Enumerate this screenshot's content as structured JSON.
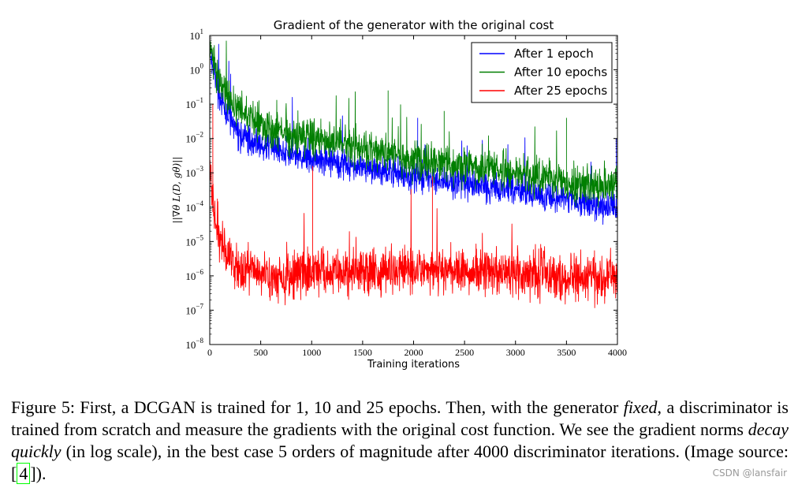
{
  "chart_data": {
    "type": "line",
    "title": "Gradient of the generator with the original cost",
    "xlabel": "Training iterations",
    "ylabel": "||∇θ L(D, gθ)||",
    "xlim": [
      0,
      4000
    ],
    "ylim_log10": [
      -8,
      1
    ],
    "yscale": "log",
    "x_ticks": [
      "0",
      "500",
      "1000",
      "1500",
      "2000",
      "2500",
      "3000",
      "3500",
      "4000"
    ],
    "y_ticks": [
      {
        "base": "10",
        "exp": "1"
      },
      {
        "base": "10",
        "exp": "0"
      },
      {
        "base": "10",
        "exp": "−1"
      },
      {
        "base": "10",
        "exp": "−2"
      },
      {
        "base": "10",
        "exp": "−3"
      },
      {
        "base": "10",
        "exp": "−4"
      },
      {
        "base": "10",
        "exp": "−5"
      },
      {
        "base": "10",
        "exp": "−6"
      },
      {
        "base": "10",
        "exp": "−7"
      },
      {
        "base": "10",
        "exp": "−8"
      }
    ],
    "legend_position": "top-right",
    "series": [
      {
        "name": "After 1 epoch",
        "color": "#0000ff",
        "x": [
          0,
          100,
          200,
          300,
          500,
          750,
          1000,
          1500,
          2000,
          2500,
          3000,
          3500,
          3950,
          4000
        ],
        "log10_median": [
          0.6,
          -0.8,
          -1.5,
          -1.9,
          -2.2,
          -2.4,
          -2.6,
          -2.8,
          -3.1,
          -3.3,
          -3.5,
          -3.8,
          -4.0,
          -4.2
        ],
        "noise": 0.35,
        "spikes": [
          {
            "x": 2040,
            "log10": -1.4
          },
          {
            "x": 3990,
            "log10": -2.0
          }
        ]
      },
      {
        "name": "After 10 epochs",
        "color": "#007f00",
        "x": [
          0,
          100,
          200,
          400,
          700,
          1000,
          1500,
          2000,
          2500,
          3000,
          3500,
          4000
        ],
        "log10_median": [
          0.6,
          -0.3,
          -0.9,
          -1.4,
          -1.8,
          -2.0,
          -2.3,
          -2.6,
          -2.8,
          -3.0,
          -3.3,
          -3.4
        ],
        "noise": 0.45,
        "spikes": [
          {
            "x": 1750,
            "log10": -0.6
          },
          {
            "x": 2300,
            "log10": -1.2
          },
          {
            "x": 3500,
            "log10": -1.4
          }
        ]
      },
      {
        "name": "After 25 epochs",
        "color": "#ff0000",
        "x": [
          0,
          50,
          150,
          300,
          600,
          1000,
          1500,
          2000,
          2500,
          3000,
          3500,
          4000
        ],
        "log10_median": [
          -2.5,
          -4.5,
          -5.3,
          -5.8,
          -6.0,
          -5.9,
          -5.9,
          -5.8,
          -5.8,
          -5.9,
          -6.0,
          -6.1
        ],
        "noise": 0.55,
        "spikes": [
          {
            "x": 30,
            "log10": -1.0
          },
          {
            "x": 1010,
            "log10": -2.8
          },
          {
            "x": 2185,
            "log10": -3.1
          }
        ]
      }
    ]
  },
  "caption": {
    "part1": "Figure 5: First, a DCGAN is trained for 1, 10 and 25 epochs. Then, with the generator ",
    "fixed": "fixed",
    "part2": ", a discriminator is trained from scratch and measure the gradients with the original cost function. We see the gradient norms ",
    "decay": "decay quickly",
    "part3": " (in log scale), in the best case 5 orders of magnitude after 4000 discriminator iterations. (Image source: [",
    "ref": "4",
    "part4": "])."
  },
  "watermark": "CSDN @lansfair"
}
